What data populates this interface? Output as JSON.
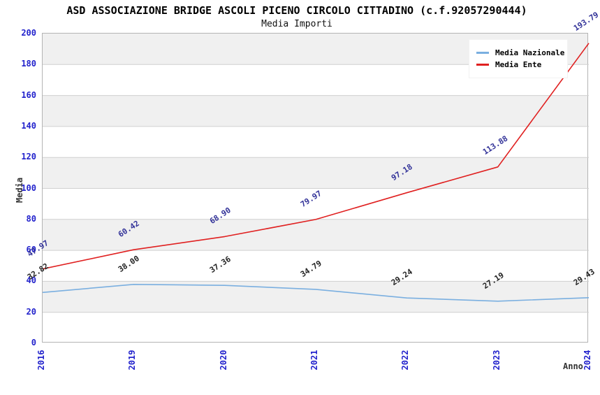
{
  "chart_data": {
    "type": "line",
    "title": "ASD ASSOCIAZIONE BRIDGE ASCOLI PICENO CIRCOLO CITTADINO (c.f.92057290444)",
    "subtitle": "Media Importi",
    "xlabel": "Anno",
    "ylabel": "Media",
    "categories": [
      "2016",
      "2019",
      "2020",
      "2021",
      "2022",
      "2023",
      "2024"
    ],
    "series": [
      {
        "name": "Media Nazionale",
        "color": "#7aafe0",
        "label_color": "#222222",
        "values": [
          32.82,
          38.0,
          37.36,
          34.79,
          29.24,
          27.19,
          29.43
        ],
        "labels": [
          "32.82",
          "38.00",
          "37.36",
          "34.79",
          "29.24",
          "27.19",
          "29.43"
        ]
      },
      {
        "name": "Media Ente",
        "color": "#e02020",
        "label_color": "#333399",
        "values": [
          47.97,
          60.42,
          68.9,
          79.97,
          97.18,
          113.88,
          193.79
        ],
        "labels": [
          "47.97",
          "60.42",
          "68.90",
          "79.97",
          "97.18",
          "113.88",
          "193.79"
        ]
      }
    ],
    "ylim": [
      0,
      200
    ],
    "y_ticks": [
      0,
      20,
      40,
      60,
      80,
      100,
      120,
      140,
      160,
      180,
      200
    ],
    "grid": true,
    "legend_position": "top-right",
    "colors": {
      "tick_label": "#2222cc",
      "axis_title": "#333333",
      "grid_line": "#d0d0d0",
      "band_fill": "#f0f0f0",
      "plot_border": "#b4b4b4"
    }
  }
}
